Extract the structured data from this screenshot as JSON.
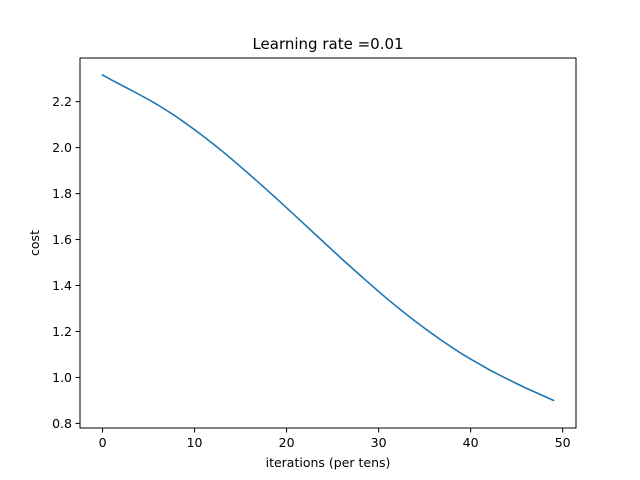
{
  "chart_data": {
    "type": "line",
    "title": "Learning rate =0.01",
    "xlabel": "iterations (per tens)",
    "ylabel": "cost",
    "xlim": [
      -2.45,
      51.45
    ],
    "ylim": [
      0.78,
      2.39
    ],
    "xticks": [
      0,
      10,
      20,
      30,
      40,
      50
    ],
    "yticks": [
      0.8,
      1.0,
      1.2,
      1.4,
      1.6,
      1.8,
      2.0,
      2.2
    ],
    "xtick_labels": [
      "0",
      "10",
      "20",
      "30",
      "40",
      "50"
    ],
    "ytick_labels": [
      "0.8",
      "1.0",
      "1.2",
      "1.4",
      "1.6",
      "1.8",
      "2.0",
      "2.2"
    ],
    "grid": false,
    "line_color": "#1f77b4",
    "series": [
      {
        "x": [
          0,
          1,
          2,
          3,
          4,
          5,
          6,
          7,
          8,
          9,
          10,
          11,
          12,
          13,
          14,
          15,
          16,
          17,
          18,
          19,
          20,
          21,
          22,
          23,
          24,
          25,
          26,
          27,
          28,
          29,
          30,
          31,
          32,
          33,
          34,
          35,
          36,
          37,
          38,
          39,
          40,
          41,
          42,
          43,
          44,
          45,
          46,
          47,
          48,
          49
        ],
        "values": [
          2.316,
          2.294,
          2.273,
          2.252,
          2.231,
          2.209,
          2.186,
          2.161,
          2.135,
          2.107,
          2.078,
          2.048,
          2.017,
          1.985,
          1.951,
          1.917,
          1.882,
          1.847,
          1.811,
          1.775,
          1.738,
          1.701,
          1.664,
          1.627,
          1.59,
          1.553,
          1.516,
          1.48,
          1.444,
          1.409,
          1.374,
          1.34,
          1.307,
          1.275,
          1.244,
          1.214,
          1.185,
          1.157,
          1.13,
          1.104,
          1.08,
          1.057,
          1.034,
          1.013,
          0.993,
          0.973,
          0.954,
          0.936,
          0.918,
          0.9
        ]
      }
    ]
  }
}
